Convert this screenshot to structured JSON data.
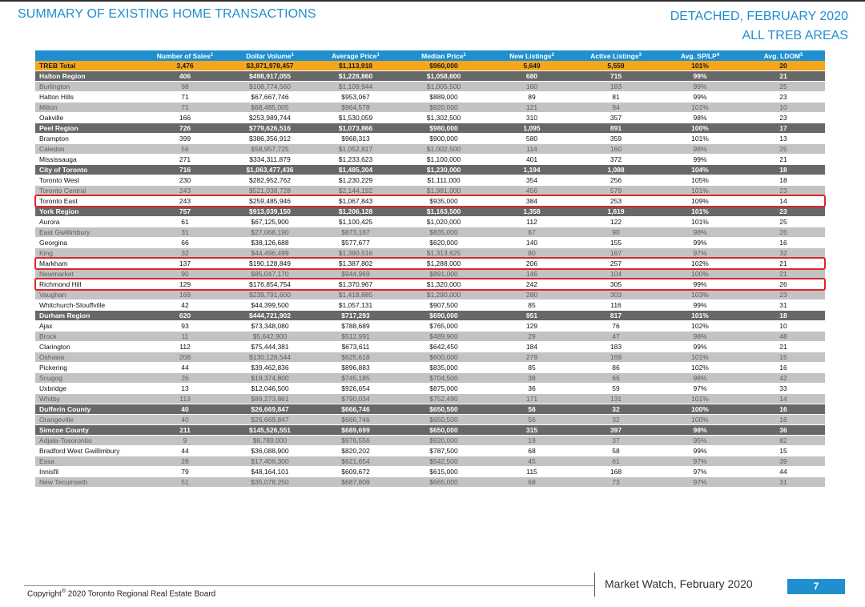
{
  "header": {
    "title": "SUMMARY OF EXISTING HOME TRANSACTIONS",
    "subtitle_line1": "DETACHED, FEBRUARY 2020",
    "subtitle_line2": "ALL TREB AREAS"
  },
  "columns": [
    {
      "label": "",
      "sup": ""
    },
    {
      "label": "Number of Sales",
      "sup": "1"
    },
    {
      "label": "Dollar Volume",
      "sup": "1"
    },
    {
      "label": "Average Price",
      "sup": "1"
    },
    {
      "label": "Median Price",
      "sup": "1"
    },
    {
      "label": "New Listings",
      "sup": "2"
    },
    {
      "label": "Active Listings",
      "sup": "3"
    },
    {
      "label": "Avg. SP/LP",
      "sup": "4"
    },
    {
      "label": "Avg. LDOM",
      "sup": "5"
    }
  ],
  "rows": [
    {
      "type": "total",
      "cells": [
        "TREB Total",
        "3,476",
        "$3,871,978,457",
        "$1,113,918",
        "$960,000",
        "5,649",
        "5,559",
        "101%",
        "20"
      ]
    },
    {
      "type": "region",
      "cells": [
        "Halton Region",
        "406",
        "$498,917,055",
        "$1,228,860",
        "$1,058,600",
        "680",
        "715",
        "99%",
        "21"
      ]
    },
    {
      "type": "shade",
      "cells": [
        "Burlington",
        "98",
        "$108,774,560",
        "$1,109,944",
        "$1,005,500",
        "160",
        "183",
        "99%",
        "25"
      ]
    },
    {
      "type": "plain",
      "cells": [
        "Halton Hills",
        "71",
        "$67,667,746",
        "$953,067",
        "$889,000",
        "89",
        "81",
        "99%",
        "23"
      ]
    },
    {
      "type": "shade",
      "cells": [
        "Milton",
        "71",
        "$68,485,005",
        "$964,578",
        "$920,000",
        "121",
        "94",
        "101%",
        "10"
      ]
    },
    {
      "type": "plain",
      "cells": [
        "Oakville",
        "166",
        "$253,989,744",
        "$1,530,059",
        "$1,302,500",
        "310",
        "357",
        "98%",
        "23"
      ]
    },
    {
      "type": "region",
      "cells": [
        "Peel Region",
        "726",
        "$779,626,516",
        "$1,073,866",
        "$980,000",
        "1,095",
        "891",
        "100%",
        "17"
      ]
    },
    {
      "type": "plain",
      "cells": [
        "Brampton",
        "399",
        "$386,356,912",
        "$968,313",
        "$900,000",
        "580",
        "359",
        "101%",
        "13"
      ]
    },
    {
      "type": "shade",
      "cells": [
        "Caledon",
        "56",
        "$58,957,725",
        "$1,052,817",
        "$1,002,500",
        "114",
        "160",
        "98%",
        "25"
      ]
    },
    {
      "type": "plain",
      "cells": [
        "Mississauga",
        "271",
        "$334,311,879",
        "$1,233,623",
        "$1,100,000",
        "401",
        "372",
        "99%",
        "21"
      ]
    },
    {
      "type": "region",
      "cells": [
        "City of Toronto",
        "716",
        "$1,063,477,436",
        "$1,485,304",
        "$1,230,000",
        "1,194",
        "1,088",
        "104%",
        "18"
      ]
    },
    {
      "type": "plain",
      "cells": [
        "Toronto West",
        "230",
        "$282,952,762",
        "$1,230,229",
        "$1,111,000",
        "354",
        "256",
        "105%",
        "18"
      ]
    },
    {
      "type": "shade",
      "cells": [
        "Toronto Central",
        "243",
        "$521,038,728",
        "$2,144,192",
        "$1,981,000",
        "456",
        "579",
        "101%",
        "23"
      ]
    },
    {
      "type": "plain",
      "cells": [
        "Toronto East",
        "243",
        "$259,485,946",
        "$1,067,843",
        "$935,000",
        "384",
        "253",
        "109%",
        "14"
      ]
    },
    {
      "type": "region",
      "cells": [
        "York Region",
        "757",
        "$913,039,150",
        "$1,206,128",
        "$1,163,500",
        "1,358",
        "1,619",
        "101%",
        "23"
      ]
    },
    {
      "type": "plain",
      "cells": [
        "Aurora",
        "61",
        "$67,125,900",
        "$1,100,425",
        "$1,020,000",
        "112",
        "122",
        "101%",
        "25"
      ]
    },
    {
      "type": "shade",
      "cells": [
        "East Gwillimbury",
        "31",
        "$27,068,190",
        "$873,167",
        "$835,000",
        "67",
        "90",
        "98%",
        "26"
      ]
    },
    {
      "type": "plain",
      "cells": [
        "Georgina",
        "66",
        "$38,126,688",
        "$577,677",
        "$620,000",
        "140",
        "155",
        "99%",
        "16"
      ]
    },
    {
      "type": "shade",
      "cells": [
        "King",
        "32",
        "$44,496,499",
        "$1,390,516",
        "$1,313,625",
        "80",
        "167",
        "97%",
        "32"
      ]
    },
    {
      "type": "plain",
      "cells": [
        "Markham",
        "137",
        "$190,128,849",
        "$1,387,802",
        "$1,288,000",
        "206",
        "257",
        "102%",
        "21"
      ]
    },
    {
      "type": "shade",
      "cells": [
        "Newmarket",
        "90",
        "$85,047,170",
        "$944,969",
        "$891,000",
        "146",
        "104",
        "100%",
        "21"
      ]
    },
    {
      "type": "plain",
      "cells": [
        "Richmond Hill",
        "129",
        "$176,854,754",
        "$1,370,967",
        "$1,320,000",
        "242",
        "305",
        "99%",
        "26"
      ]
    },
    {
      "type": "shade",
      "cells": [
        "Vaughan",
        "169",
        "$239,791,600",
        "$1,418,885",
        "$1,290,000",
        "280",
        "303",
        "103%",
        "23"
      ]
    },
    {
      "type": "plain",
      "cells": [
        "Whitchurch-Stouffville",
        "42",
        "$44,399,500",
        "$1,057,131",
        "$907,500",
        "85",
        "116",
        "99%",
        "31"
      ]
    },
    {
      "type": "region",
      "cells": [
        "Durham Region",
        "620",
        "$444,721,902",
        "$717,293",
        "$690,000",
        "951",
        "817",
        "101%",
        "18"
      ]
    },
    {
      "type": "plain",
      "cells": [
        "Ajax",
        "93",
        "$73,348,080",
        "$788,689",
        "$765,000",
        "129",
        "76",
        "102%",
        "10"
      ]
    },
    {
      "type": "shade",
      "cells": [
        "Brock",
        "11",
        "$5,642,900",
        "$512,991",
        "$489,900",
        "29",
        "47",
        "98%",
        "48"
      ]
    },
    {
      "type": "plain",
      "cells": [
        "Clarington",
        "112",
        "$75,444,381",
        "$673,611",
        "$642,450",
        "184",
        "183",
        "99%",
        "21"
      ]
    },
    {
      "type": "shade",
      "cells": [
        "Oshawa",
        "208",
        "$130,128,544",
        "$625,618",
        "$600,000",
        "279",
        "169",
        "101%",
        "15"
      ]
    },
    {
      "type": "plain",
      "cells": [
        "Pickering",
        "44",
        "$39,462,836",
        "$896,883",
        "$835,000",
        "85",
        "86",
        "102%",
        "16"
      ]
    },
    {
      "type": "shade",
      "cells": [
        "Scugog",
        "26",
        "$19,374,800",
        "$745,185",
        "$704,500",
        "38",
        "66",
        "98%",
        "42"
      ]
    },
    {
      "type": "plain",
      "cells": [
        "Uxbridge",
        "13",
        "$12,046,500",
        "$926,654",
        "$875,000",
        "36",
        "59",
        "97%",
        "33"
      ]
    },
    {
      "type": "shade",
      "cells": [
        "Whitby",
        "113",
        "$89,273,861",
        "$790,034",
        "$752,490",
        "171",
        "131",
        "101%",
        "14"
      ]
    },
    {
      "type": "region",
      "cells": [
        "Dufferin County",
        "40",
        "$26,669,847",
        "$666,746",
        "$650,500",
        "56",
        "32",
        "100%",
        "16"
      ]
    },
    {
      "type": "shade",
      "cells": [
        "Orangeville",
        "40",
        "$26,669,847",
        "$666,746",
        "$650,500",
        "56",
        "32",
        "100%",
        "16"
      ]
    },
    {
      "type": "region",
      "cells": [
        "Simcoe County",
        "211",
        "$145,526,551",
        "$689,699",
        "$650,000",
        "315",
        "397",
        "98%",
        "36"
      ]
    },
    {
      "type": "shade",
      "cells": [
        "Adjala-Tosorontio",
        "9",
        "$8,789,000",
        "$976,556",
        "$920,000",
        "19",
        "37",
        "95%",
        "82"
      ]
    },
    {
      "type": "plain",
      "cells": [
        "Bradford West Gwillimbury",
        "44",
        "$36,088,900",
        "$820,202",
        "$787,500",
        "68",
        "58",
        "99%",
        "15"
      ]
    },
    {
      "type": "shade",
      "cells": [
        "Essa",
        "28",
        "$17,406,300",
        "$621,654",
        "$542,500",
        "45",
        "61",
        "97%",
        "39"
      ]
    },
    {
      "type": "plain",
      "cells": [
        "Innisfil",
        "79",
        "$48,164,101",
        "$609,672",
        "$615,000",
        "115",
        "168",
        "97%",
        "44"
      ]
    },
    {
      "type": "shade",
      "cells": [
        "New Tecumseth",
        "51",
        "$35,078,250",
        "$687,809",
        "$665,000",
        "68",
        "73",
        "97%",
        "31"
      ]
    }
  ],
  "highlighted_rows": [
    "Toronto East",
    "Markham",
    "Richmond Hill"
  ],
  "colors": {
    "accent_blue": "#1f8fd0",
    "total_orange": "#f4a61d",
    "region_gray": "#686868",
    "shade_gray": "#c3c3c3",
    "highlight_red": "#e0242a"
  },
  "footer": {
    "copyright_prefix": "Copyright",
    "copyright_mark": "®",
    "copyright_text": " 2020 Toronto Regional Real Estate Board",
    "publication": "Market Watch, February 2020",
    "page_number": "7"
  }
}
